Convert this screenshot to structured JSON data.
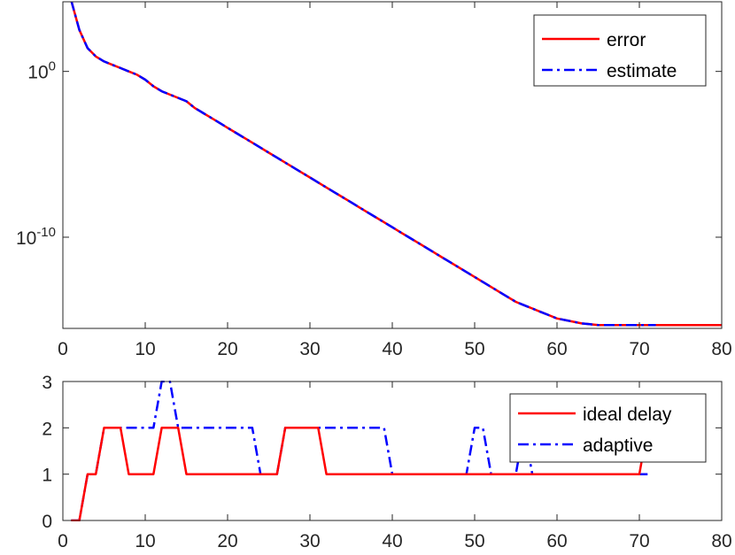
{
  "colors": {
    "error": "#ff0000",
    "estimate": "#0000ff",
    "ideal_delay": "#ff0000",
    "adaptive": "#0000ff",
    "axis": "#262626"
  },
  "chart_data": [
    {
      "type": "line",
      "yscale": "log",
      "xlim": [
        0,
        80
      ],
      "ylim_log10": [
        -15.5,
        4.2
      ],
      "title": "",
      "xlabel": "",
      "ylabel": "",
      "xticks": [
        "0",
        "10",
        "20",
        "30",
        "40",
        "50",
        "60",
        "70",
        "80"
      ],
      "yticks": [
        {
          "value_log10": 0,
          "base": "10",
          "exp": "0"
        },
        {
          "value_log10": -10,
          "base": "10",
          "exp": "-10"
        }
      ],
      "legend_position": "top-right",
      "series": [
        {
          "name": "error",
          "style": "solid",
          "color": "#ff0000",
          "x": [
            1,
            2,
            3,
            4,
            5,
            6,
            7,
            8,
            9,
            10,
            11,
            12,
            13,
            14,
            15,
            16,
            17,
            18,
            19,
            20,
            21,
            22,
            23,
            24,
            25,
            26,
            27,
            28,
            29,
            30,
            31,
            32,
            33,
            34,
            35,
            36,
            37,
            38,
            39,
            40,
            41,
            42,
            43,
            44,
            45,
            46,
            47,
            48,
            49,
            50,
            51,
            52,
            53,
            54,
            55,
            56,
            57,
            58,
            59,
            60,
            61,
            62,
            63,
            64,
            65,
            66,
            67,
            68,
            69,
            70,
            71,
            72,
            73,
            74,
            75,
            76,
            77,
            78,
            79,
            80
          ],
          "log10_y": [
            4.3,
            2.5,
            1.4,
            0.9,
            0.6,
            0.4,
            0.2,
            0.0,
            -0.2,
            -0.5,
            -0.9,
            -1.2,
            -1.4,
            -1.6,
            -1.8,
            -2.2,
            -2.5,
            -2.8,
            -3.1,
            -3.4,
            -3.7,
            -4.0,
            -4.3,
            -4.6,
            -4.9,
            -5.2,
            -5.5,
            -5.8,
            -6.1,
            -6.4,
            -6.7,
            -7.0,
            -7.3,
            -7.6,
            -7.9,
            -8.2,
            -8.5,
            -8.8,
            -9.1,
            -9.4,
            -9.7,
            -10.0,
            -10.3,
            -10.6,
            -10.9,
            -11.2,
            -11.5,
            -11.8,
            -12.1,
            -12.4,
            -12.7,
            -13.0,
            -13.3,
            -13.6,
            -13.9,
            -14.1,
            -14.3,
            -14.5,
            -14.7,
            -14.9,
            -15.0,
            -15.1,
            -15.2,
            -15.25,
            -15.3,
            -15.3,
            -15.3,
            -15.3,
            -15.3,
            -15.3,
            -15.3,
            -15.3,
            -15.3,
            -15.3,
            -15.3,
            -15.3,
            -15.3,
            -15.3,
            -15.3,
            -15.3
          ]
        },
        {
          "name": "estimate",
          "style": "dashdot",
          "color": "#0000ff",
          "x": [
            1,
            2,
            3,
            4,
            5,
            6,
            7,
            8,
            9,
            10,
            11,
            12,
            13,
            14,
            15,
            16,
            17,
            18,
            19,
            20,
            21,
            22,
            23,
            24,
            25,
            26,
            27,
            28,
            29,
            30,
            31,
            32,
            33,
            34,
            35,
            36,
            37,
            38,
            39,
            40,
            41,
            42,
            43,
            44,
            45,
            46,
            47,
            48,
            49,
            50,
            51,
            52,
            53,
            54,
            55,
            56,
            57,
            58,
            59,
            60,
            61,
            62,
            63,
            64,
            65,
            66,
            67,
            68,
            69,
            70,
            71,
            72
          ],
          "log10_y": [
            4.3,
            2.5,
            1.4,
            0.9,
            0.6,
            0.4,
            0.2,
            0.0,
            -0.2,
            -0.5,
            -0.9,
            -1.2,
            -1.4,
            -1.6,
            -1.8,
            -2.2,
            -2.5,
            -2.8,
            -3.1,
            -3.4,
            -3.7,
            -4.0,
            -4.3,
            -4.6,
            -4.9,
            -5.2,
            -5.5,
            -5.8,
            -6.1,
            -6.4,
            -6.7,
            -7.0,
            -7.3,
            -7.6,
            -7.9,
            -8.2,
            -8.5,
            -8.8,
            -9.1,
            -9.4,
            -9.7,
            -10.0,
            -10.3,
            -10.6,
            -10.9,
            -11.2,
            -11.5,
            -11.8,
            -12.1,
            -12.4,
            -12.7,
            -13.0,
            -13.3,
            -13.6,
            -13.9,
            -14.1,
            -14.3,
            -14.5,
            -14.7,
            -14.9,
            -15.0,
            -15.1,
            -15.2,
            -15.25,
            -15.3,
            -15.3,
            -15.3,
            -15.3,
            -15.3,
            -15.3,
            -15.3,
            -15.3
          ]
        }
      ]
    },
    {
      "type": "line",
      "xlim": [
        0,
        80
      ],
      "ylim": [
        0,
        3
      ],
      "title": "",
      "xlabel": "",
      "ylabel": "",
      "xticks": [
        "0",
        "10",
        "20",
        "30",
        "40",
        "50",
        "60",
        "70",
        "80"
      ],
      "yticks": [
        "0",
        "1",
        "2",
        "3"
      ],
      "legend_position": "top-right",
      "series": [
        {
          "name": "ideal delay",
          "style": "solid",
          "color": "#ff0000",
          "x": [
            1,
            2,
            3,
            4,
            5,
            6,
            7,
            8,
            9,
            10,
            11,
            12,
            13,
            14,
            15,
            16,
            17,
            18,
            19,
            20,
            21,
            22,
            23,
            24,
            25,
            26,
            27,
            28,
            29,
            30,
            31,
            32,
            33,
            34,
            35,
            36,
            37,
            38,
            39,
            40,
            41,
            42,
            43,
            44,
            45,
            46,
            47,
            48,
            49,
            50,
            51,
            52,
            53,
            54,
            55,
            56,
            57,
            58,
            59,
            60,
            61,
            62,
            63,
            64,
            65,
            66,
            67,
            68,
            69,
            70,
            71
          ],
          "y": [
            0,
            0,
            1,
            1,
            2,
            2,
            2,
            1,
            1,
            1,
            1,
            2,
            2,
            2,
            1,
            1,
            1,
            1,
            1,
            1,
            1,
            1,
            1,
            1,
            1,
            1,
            2,
            2,
            2,
            2,
            2,
            1,
            1,
            1,
            1,
            1,
            1,
            1,
            1,
            1,
            1,
            1,
            1,
            1,
            1,
            1,
            1,
            1,
            1,
            1,
            1,
            1,
            1,
            1,
            1,
            1,
            1,
            1,
            1,
            1,
            1,
            1,
            1,
            1,
            1,
            1,
            1,
            1,
            1,
            1,
            2
          ]
        },
        {
          "name": "adaptive",
          "style": "dashdot",
          "color": "#0000ff",
          "x": [
            1,
            2,
            3,
            4,
            5,
            6,
            7,
            8,
            9,
            10,
            11,
            12,
            13,
            14,
            15,
            16,
            17,
            18,
            19,
            20,
            21,
            22,
            23,
            24,
            25,
            26,
            27,
            28,
            29,
            30,
            31,
            32,
            33,
            34,
            35,
            36,
            37,
            38,
            39,
            40,
            41,
            42,
            43,
            44,
            45,
            46,
            47,
            48,
            49,
            50,
            51,
            52,
            53,
            54,
            55,
            56,
            57,
            58,
            59,
            60,
            61,
            62,
            63,
            64,
            65,
            66,
            67,
            68,
            69,
            70,
            71
          ],
          "y": [
            0,
            0,
            1,
            1,
            2,
            2,
            2,
            2,
            2,
            2,
            2,
            3,
            3,
            2,
            2,
            2,
            2,
            2,
            2,
            2,
            2,
            2,
            2,
            1,
            1,
            1,
            2,
            2,
            2,
            2,
            2,
            2,
            2,
            2,
            2,
            2,
            2,
            2,
            2,
            1,
            1,
            1,
            1,
            1,
            1,
            1,
            1,
            1,
            1,
            2,
            2,
            1,
            1,
            1,
            1,
            2,
            1,
            1,
            1,
            1,
            1,
            1,
            1,
            1,
            1,
            1,
            1,
            1,
            1,
            1,
            1
          ]
        }
      ]
    }
  ]
}
